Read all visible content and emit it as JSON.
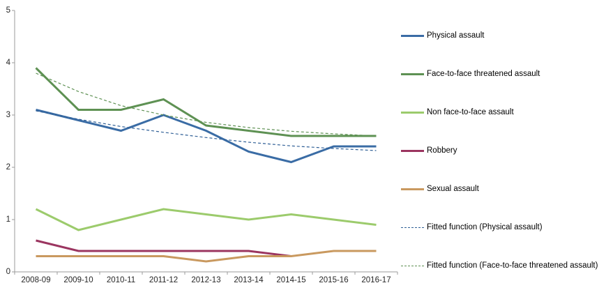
{
  "chart_data": {
    "type": "line",
    "title": "",
    "xlabel": "",
    "ylabel": "",
    "categories": [
      "2008-09",
      "2009-10",
      "2010-11",
      "2011-12",
      "2012-13",
      "2013-14",
      "2014-15",
      "2015-16",
      "2016-17"
    ],
    "series": [
      {
        "name": "Physical assault",
        "style": "solid",
        "color": "#3A6CA5",
        "values": [
          3.1,
          2.9,
          2.7,
          3.0,
          2.7,
          2.3,
          2.1,
          2.4,
          2.4
        ]
      },
      {
        "name": "Face-to-face threatened assault",
        "style": "solid",
        "color": "#5E9153",
        "values": [
          3.9,
          3.1,
          3.1,
          3.3,
          2.8,
          2.7,
          2.6,
          2.6,
          2.6
        ]
      },
      {
        "name": "Non face-to-face assault",
        "style": "solid",
        "color": "#9CCB6C",
        "values": [
          1.2,
          0.8,
          1.0,
          1.2,
          1.1,
          1.0,
          1.1,
          1.0,
          0.9
        ]
      },
      {
        "name": "Robbery",
        "style": "solid",
        "color": "#9B3560",
        "values": [
          0.6,
          0.4,
          0.4,
          0.4,
          0.4,
          0.4,
          0.3,
          null,
          null
        ]
      },
      {
        "name": "Sexual assault",
        "style": "solid",
        "color": "#C9995F",
        "values": [
          0.3,
          0.3,
          0.3,
          0.3,
          0.2,
          0.3,
          0.3,
          0.4,
          0.4
        ]
      },
      {
        "name": "Fitted function (Physical assault)",
        "style": "dashed",
        "color": "#2F5F96",
        "values": [
          3.08,
          2.92,
          2.78,
          2.67,
          2.57,
          2.48,
          2.41,
          2.36,
          2.32
        ]
      },
      {
        "name": "Fitted function (Face-to-face threatened assault)",
        "style": "dashed",
        "color": "#5E9153",
        "values": [
          3.8,
          3.45,
          3.18,
          3.0,
          2.86,
          2.76,
          2.69,
          2.64,
          2.6
        ]
      }
    ],
    "ylim": [
      0,
      5
    ],
    "yticks": [
      0,
      1,
      2,
      3,
      4,
      5
    ],
    "grid": false,
    "legend_position": "right",
    "axis_color": "#9B9B9B",
    "tick_label_color": "#262626"
  }
}
